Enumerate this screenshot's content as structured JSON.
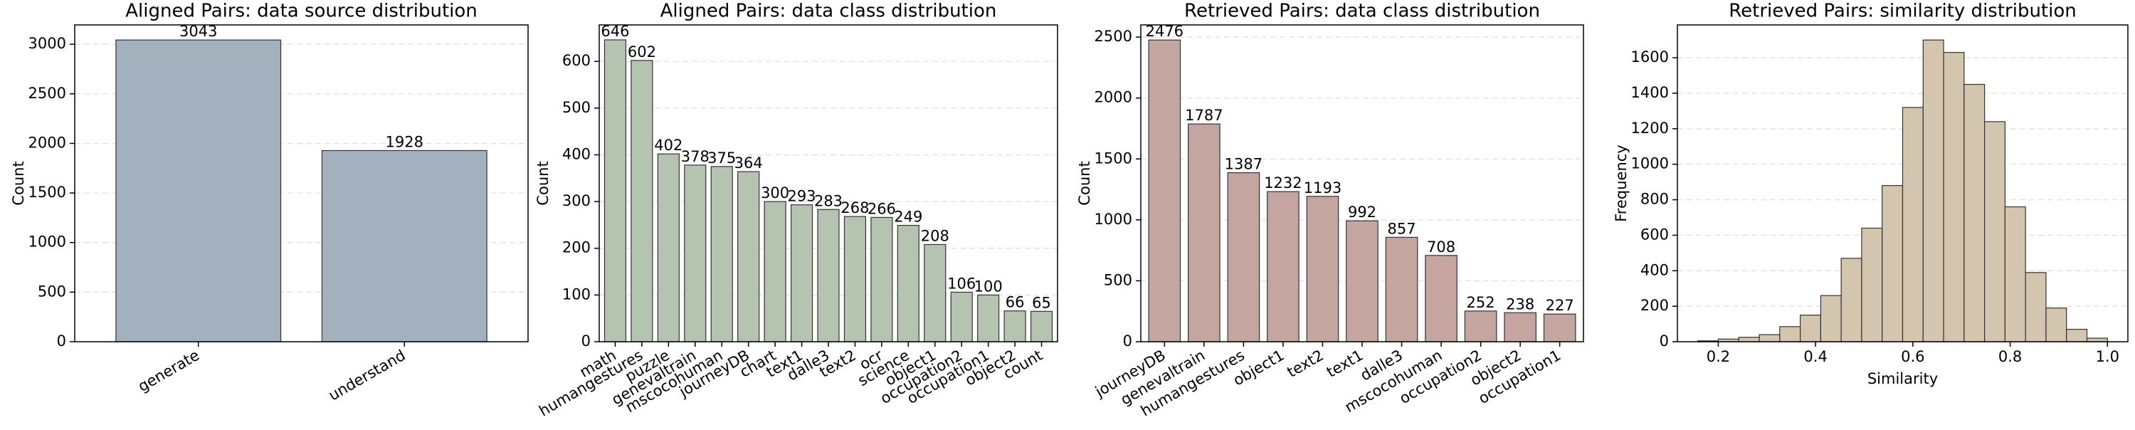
{
  "chart_data": [
    {
      "type": "bar",
      "title": "Aligned Pairs: data source distribution",
      "y_label": "Count",
      "categories": [
        "generate",
        "understand"
      ],
      "values": [
        3043,
        1928
      ],
      "color": "#a3b1bf",
      "ylim": [
        0,
        3195
      ],
      "yticks": [
        0,
        500,
        1000,
        1500,
        2000,
        2500,
        3000
      ],
      "grid": true
    },
    {
      "type": "bar",
      "title": "Aligned Pairs: data class distribution",
      "y_label": "Count",
      "categories": [
        "math",
        "humangestures",
        "puzzle",
        "genevaltrain",
        "mscocohuman",
        "journeyDB",
        "chart",
        "text1",
        "dalle3",
        "text2",
        "ocr",
        "science",
        "object1",
        "occupation2",
        "occupation1",
        "object2",
        "count"
      ],
      "values": [
        646,
        602,
        402,
        378,
        375,
        364,
        300,
        293,
        283,
        268,
        266,
        249,
        208,
        106,
        100,
        66,
        65
      ],
      "color": "#b5c4b1",
      "ylim": [
        0,
        678
      ],
      "yticks": [
        0,
        100,
        200,
        300,
        400,
        500,
        600
      ],
      "grid": true
    },
    {
      "type": "bar",
      "title": "Retrieved Pairs: data class distribution",
      "y_label": "Count",
      "categories": [
        "journeyDB",
        "genevaltrain",
        "humangestures",
        "object1",
        "text2",
        "text1",
        "dalle3",
        "mscocohuman",
        "occupation2",
        "object2",
        "occupation1"
      ],
      "values": [
        2476,
        1787,
        1387,
        1232,
        1193,
        992,
        857,
        708,
        252,
        238,
        227
      ],
      "color": "#c4a5a0",
      "ylim": [
        0,
        2600
      ],
      "yticks": [
        0,
        500,
        1000,
        1500,
        2000,
        2500
      ],
      "grid": true
    },
    {
      "type": "histogram",
      "title": "Retrieved Pairs: similarity distribution",
      "y_label": "Frequency",
      "x_label": "Similarity",
      "bins": [
        0.158,
        0.2001,
        0.2422,
        0.2843,
        0.3264,
        0.3685,
        0.4106,
        0.4527,
        0.4948,
        0.5369,
        0.579,
        0.6211,
        0.6632,
        0.7053,
        0.7474,
        0.7895,
        0.8316,
        0.8737,
        0.9158,
        0.9579,
        1.0
      ],
      "values": [
        5,
        15,
        25,
        40,
        85,
        150,
        260,
        470,
        640,
        880,
        1320,
        1700,
        1630,
        1450,
        1240,
        760,
        390,
        190,
        70,
        20
      ],
      "color": "#d4c5ae",
      "xlim": [
        0.116,
        1.042
      ],
      "xticks": [
        0.2,
        0.4,
        0.6,
        0.8,
        {
          "value": 1,
          "label": "1.0"
        }
      ],
      "ylim": [
        0,
        1785
      ],
      "yticks": [
        0,
        200,
        400,
        600,
        800,
        1000,
        1200,
        1400,
        1600
      ],
      "grid": true
    }
  ]
}
